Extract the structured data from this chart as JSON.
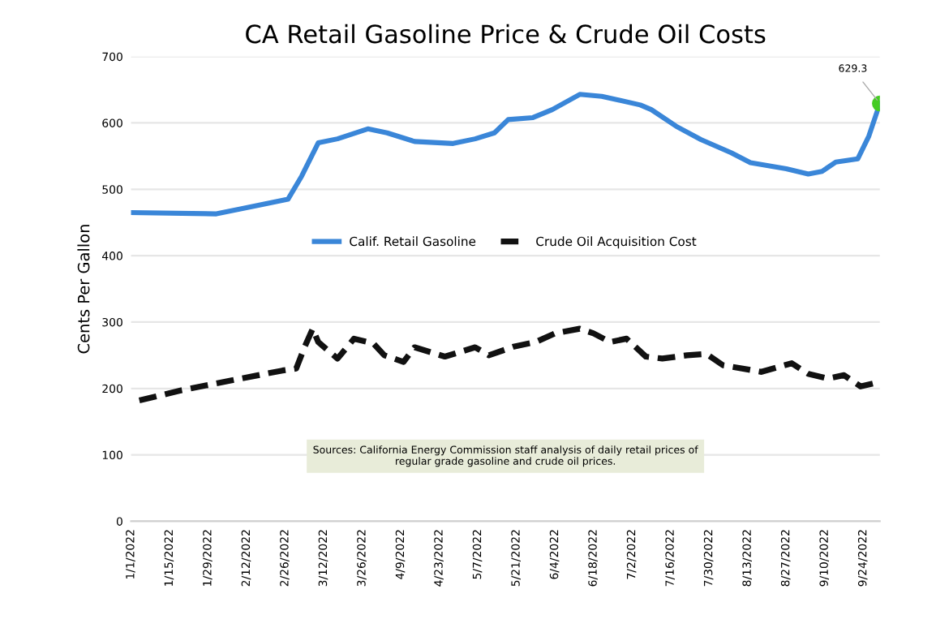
{
  "chart_data": {
    "type": "line",
    "title": "CA Retail Gasoline Price & Crude Oil Costs",
    "ylabel": "Cents Per Gallon",
    "xlim": [
      "2022-01-01",
      "2022-09-30"
    ],
    "ylim": [
      0,
      700
    ],
    "yticks": [
      0,
      100,
      200,
      300,
      400,
      500,
      600,
      700
    ],
    "xticks": [
      {
        "value": "2022-01-01",
        "label": "1/1/2022"
      },
      {
        "value": "2022-01-15",
        "label": "1/15/2022"
      },
      {
        "value": "2022-01-29",
        "label": "1/29/2022"
      },
      {
        "value": "2022-02-12",
        "label": "2/12/2022"
      },
      {
        "value": "2022-02-26",
        "label": "2/26/2022"
      },
      {
        "value": "2022-03-12",
        "label": "3/12/2022"
      },
      {
        "value": "2022-03-26",
        "label": "3/26/2022"
      },
      {
        "value": "2022-04-09",
        "label": "4/9/2022"
      },
      {
        "value": "2022-04-23",
        "label": "4/23/2022"
      },
      {
        "value": "2022-05-07",
        "label": "5/7/2022"
      },
      {
        "value": "2022-05-21",
        "label": "5/21/2022"
      },
      {
        "value": "2022-06-04",
        "label": "6/4/2022"
      },
      {
        "value": "2022-06-18",
        "label": "6/18/2022"
      },
      {
        "value": "2022-07-02",
        "label": "7/2/2022"
      },
      {
        "value": "2022-07-16",
        "label": "7/16/2022"
      },
      {
        "value": "2022-07-30",
        "label": "7/30/2022"
      },
      {
        "value": "2022-08-13",
        "label": "8/13/2022"
      },
      {
        "value": "2022-08-27",
        "label": "8/27/2022"
      },
      {
        "value": "2022-09-10",
        "label": "9/10/2022"
      },
      {
        "value": "2022-09-24",
        "label": "9/24/2022"
      }
    ],
    "grid": "y",
    "legend": "center",
    "series": [
      {
        "name": "Calif. Retail Gasoline",
        "color": "#3a86d8",
        "line_style": "solid",
        "x": [
          "2022-01-01",
          "2022-02-01",
          "2022-02-27",
          "2022-03-04",
          "2022-03-10",
          "2022-03-17",
          "2022-03-28",
          "2022-04-04",
          "2022-04-14",
          "2022-04-28",
          "2022-05-06",
          "2022-05-13",
          "2022-05-18",
          "2022-05-27",
          "2022-06-03",
          "2022-06-13",
          "2022-06-21",
          "2022-07-05",
          "2022-07-09",
          "2022-07-18",
          "2022-07-27",
          "2022-08-07",
          "2022-08-14",
          "2022-08-27",
          "2022-09-04",
          "2022-09-09",
          "2022-09-14",
          "2022-09-22",
          "2022-09-26",
          "2022-09-30"
        ],
        "values": [
          465,
          463,
          485,
          520,
          570,
          576,
          591,
          585,
          572,
          569,
          576,
          585,
          605,
          608,
          620,
          643,
          640,
          627,
          620,
          595,
          575,
          555,
          540,
          531,
          523,
          527,
          541,
          546,
          580,
          629.3
        ]
      },
      {
        "name": "Crude Oil Acquisition Cost",
        "color": "#111111",
        "line_style": "dashed",
        "x": [
          "2022-01-04",
          "2022-01-19",
          "2022-02-10",
          "2022-02-25",
          "2022-03-02",
          "2022-03-05",
          "2022-03-08",
          "2022-03-10",
          "2022-03-17",
          "2022-03-23",
          "2022-03-30",
          "2022-04-03",
          "2022-04-10",
          "2022-04-14",
          "2022-04-25",
          "2022-05-06",
          "2022-05-11",
          "2022-05-20",
          "2022-05-28",
          "2022-06-04",
          "2022-06-13",
          "2022-06-18",
          "2022-06-24",
          "2022-06-30",
          "2022-07-07",
          "2022-07-13",
          "2022-07-22",
          "2022-07-29",
          "2022-08-04",
          "2022-08-18",
          "2022-08-29",
          "2022-09-04",
          "2022-09-11",
          "2022-09-17",
          "2022-09-23",
          "2022-09-30"
        ],
        "values": [
          182,
          197,
          215,
          227,
          230,
          262,
          290,
          270,
          245,
          275,
          268,
          250,
          240,
          262,
          248,
          262,
          250,
          263,
          270,
          283,
          290,
          283,
          270,
          275,
          248,
          245,
          250,
          252,
          235,
          225,
          238,
          222,
          215,
          220,
          203,
          210
        ]
      }
    ],
    "annotations": [
      {
        "text": "629.3",
        "x": "2022-09-30",
        "y": 629.3
      },
      "Sources: California Energy Commission staff analysis of daily retail prices of\nregular grade gasoline and crude oil prices."
    ]
  }
}
